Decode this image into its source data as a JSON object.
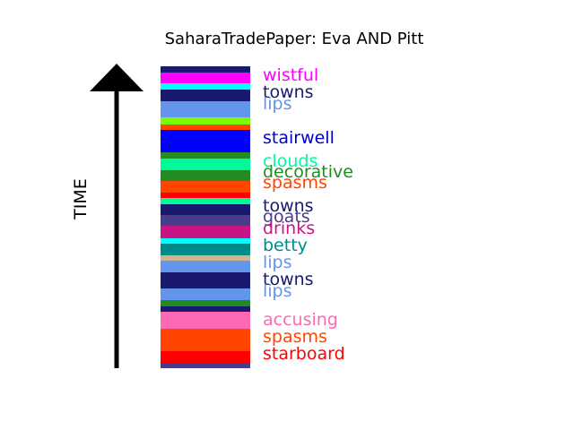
{
  "chart_data": {
    "type": "bar",
    "title": "SaharaTradePaper: Eva AND Pitt",
    "ylabel": "TIME",
    "stack_order": "top-to-bottom",
    "segments": [
      {
        "color": "#191970"
      },
      {
        "color": "#ff00ff"
      },
      {
        "color": "#00ffff"
      },
      {
        "color": "#191970"
      },
      {
        "color": "#6495ed"
      },
      {
        "color": "#7cfc00"
      },
      {
        "color": "#ff4500"
      },
      {
        "color": "#0000ff"
      },
      {
        "color": "#228b22"
      },
      {
        "color": "#00fa9a"
      },
      {
        "color": "#228b22"
      },
      {
        "color": "#ff4500"
      },
      {
        "color": "#ff0000"
      },
      {
        "color": "#00fa9a"
      },
      {
        "color": "#191970"
      },
      {
        "color": "#483d8b"
      },
      {
        "color": "#c71585"
      },
      {
        "color": "#00ffff"
      },
      {
        "color": "#008b8b"
      },
      {
        "color": "#d2b48c"
      },
      {
        "color": "#6495ed"
      },
      {
        "color": "#191970"
      },
      {
        "color": "#6495ed"
      },
      {
        "color": "#228b22"
      },
      {
        "color": "#191970"
      },
      {
        "color": "#ff69b4"
      },
      {
        "color": "#ff4500"
      },
      {
        "color": "#ff0000"
      },
      {
        "color": "#483d8b"
      }
    ],
    "labels": [
      {
        "text": "wistful",
        "color": "#ff00ff"
      },
      {
        "text": "towns",
        "color": "#191970"
      },
      {
        "text": "lips",
        "color": "#6495ed"
      },
      {
        "text": "stairwell",
        "color": "#0000cd"
      },
      {
        "text": "clouds",
        "color": "#00fa9a"
      },
      {
        "text": "decorative",
        "color": "#228b22"
      },
      {
        "text": "spasms",
        "color": "#ff4500"
      },
      {
        "text": "towns",
        "color": "#191970"
      },
      {
        "text": "goats",
        "color": "#483d8b"
      },
      {
        "text": "drinks",
        "color": "#c71585"
      },
      {
        "text": "betty",
        "color": "#008b8b"
      },
      {
        "text": "lips",
        "color": "#6495ed"
      },
      {
        "text": "towns",
        "color": "#191970"
      },
      {
        "text": "lips",
        "color": "#6495ed"
      },
      {
        "text": "accusing",
        "color": "#ff69b4"
      },
      {
        "text": "spasms",
        "color": "#ff4500"
      },
      {
        "text": "starboard",
        "color": "#ff0000"
      }
    ]
  }
}
